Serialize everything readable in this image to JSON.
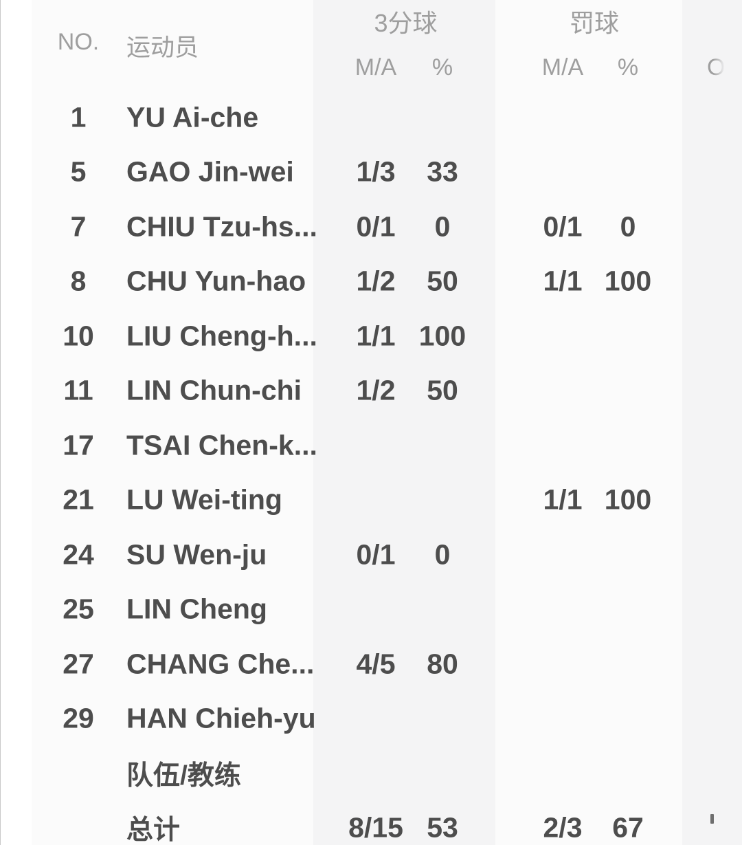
{
  "table": {
    "columns": {
      "no_label": "NO.",
      "player_label": "运动员",
      "groups": [
        {
          "label": "3分球",
          "sub": [
            "M/A",
            "%"
          ]
        },
        {
          "label": "罚球",
          "sub": [
            "M/A",
            "%"
          ]
        },
        {
          "label": "",
          "sub": [
            "O"
          ],
          "clipped": true
        }
      ]
    },
    "rows": [
      {
        "no": "1",
        "name": "YU Ai-che",
        "tp_ma": "",
        "tp_pct": "",
        "ft_ma": "",
        "ft_pct": ""
      },
      {
        "no": "5",
        "name": "GAO Jin-wei",
        "tp_ma": "1/3",
        "tp_pct": "33",
        "ft_ma": "",
        "ft_pct": ""
      },
      {
        "no": "7",
        "name": "CHIU Tzu-hs...",
        "tp_ma": "0/1",
        "tp_pct": "0",
        "ft_ma": "0/1",
        "ft_pct": "0"
      },
      {
        "no": "8",
        "name": "CHU Yun-hao",
        "tp_ma": "1/2",
        "tp_pct": "50",
        "ft_ma": "1/1",
        "ft_pct": "100"
      },
      {
        "no": "10",
        "name": "LIU Cheng-h...",
        "tp_ma": "1/1",
        "tp_pct": "100",
        "ft_ma": "",
        "ft_pct": ""
      },
      {
        "no": "11",
        "name": "LIN Chun-chi",
        "tp_ma": "1/2",
        "tp_pct": "50",
        "ft_ma": "",
        "ft_pct": ""
      },
      {
        "no": "17",
        "name": "TSAI Chen-k...",
        "tp_ma": "",
        "tp_pct": "",
        "ft_ma": "",
        "ft_pct": ""
      },
      {
        "no": "21",
        "name": "LU Wei-ting",
        "tp_ma": "",
        "tp_pct": "",
        "ft_ma": "1/1",
        "ft_pct": "100"
      },
      {
        "no": "24",
        "name": "SU Wen-ju",
        "tp_ma": "0/1",
        "tp_pct": "0",
        "ft_ma": "",
        "ft_pct": ""
      },
      {
        "no": "25",
        "name": "LIN Cheng",
        "tp_ma": "",
        "tp_pct": "",
        "ft_ma": "",
        "ft_pct": ""
      },
      {
        "no": "27",
        "name": "CHANG Che...",
        "tp_ma": "4/5",
        "tp_pct": "80",
        "ft_ma": "",
        "ft_pct": ""
      },
      {
        "no": "29",
        "name": "HAN Chieh-yu",
        "tp_ma": "",
        "tp_pct": "",
        "ft_ma": "",
        "ft_pct": ""
      },
      {
        "no": "",
        "name": "队伍/教练",
        "tp_ma": "",
        "tp_pct": "",
        "ft_ma": "",
        "ft_pct": "",
        "bold": true
      },
      {
        "no": "",
        "name": "总计",
        "tp_ma": "8/15",
        "tp_pct": "53",
        "ft_ma": "2/3",
        "ft_pct": "67",
        "bold": true,
        "clipped_next_value": true
      }
    ],
    "totals": {
      "tp_ma": "8/15",
      "tp_pct": "53",
      "ft_ma": "2/3",
      "ft_pct": "67"
    }
  },
  "colors": {
    "text": "#4d4d4d",
    "header_text": "#9e9e9e",
    "stripe": "#f4f4f5",
    "page_bg": "#ffffff",
    "panel_bg": "#fbfbfb",
    "edge_line": "#c8c8c8"
  }
}
